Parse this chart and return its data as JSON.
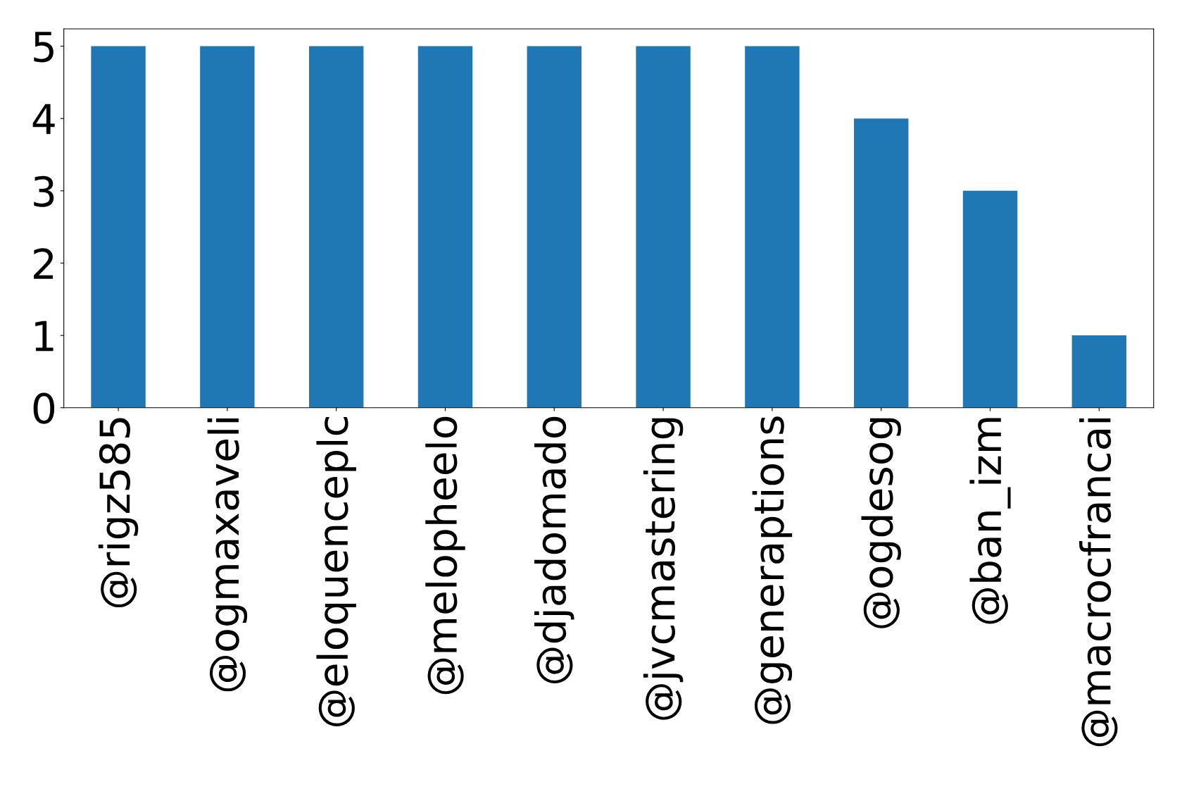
{
  "chart_data": {
    "type": "bar",
    "categories": [
      "@rigz585",
      "@ogmaxaveli",
      "@eloquenceplc",
      "@melopheelo",
      "@djadomado",
      "@jvcmastering",
      "@generaptions",
      "@ogdesog",
      "@ban_izm",
      "@macrocfrancai"
    ],
    "values": [
      5,
      5,
      5,
      5,
      5,
      5,
      5,
      4,
      3,
      1
    ],
    "color": "#1f77b4",
    "ylim": [
      0,
      5.24
    ],
    "yticks": [
      0,
      1,
      2,
      3,
      4,
      5
    ],
    "grid": false,
    "legend": false
  }
}
